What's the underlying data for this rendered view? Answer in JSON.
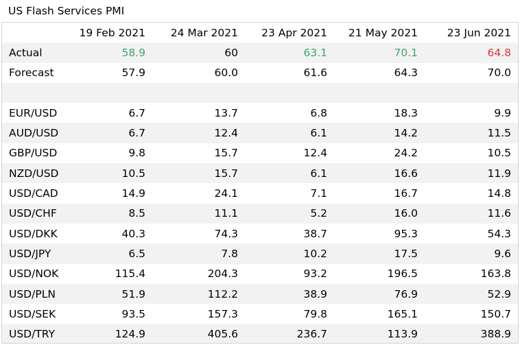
{
  "title": "US Flash Services PMI",
  "colors": {
    "up": "#3ea66b",
    "down": "#d9363e",
    "shade": "#f2f2f2"
  },
  "columns": [
    "",
    "19 Feb 2021",
    "24 Mar 2021",
    "23 Apr 2021",
    "21 May 2021",
    "23 Jun 2021"
  ],
  "actual": {
    "label": "Actual",
    "values": [
      "58.9",
      "60",
      "63.1",
      "70.1",
      "64.8"
    ],
    "tones": [
      "up",
      "none",
      "up",
      "up",
      "down"
    ]
  },
  "forecast": {
    "label": "Forecast",
    "values": [
      "57.9",
      "60.0",
      "61.6",
      "64.3",
      "70.0"
    ]
  },
  "pairs": [
    {
      "label": "EUR/USD",
      "values": [
        "6.7",
        "13.7",
        "6.8",
        "18.3",
        "9.9"
      ]
    },
    {
      "label": "AUD/USD",
      "values": [
        "6.7",
        "12.4",
        "6.1",
        "14.2",
        "11.5"
      ]
    },
    {
      "label": "GBP/USD",
      "values": [
        "9.8",
        "15.7",
        "12.4",
        "24.2",
        "10.5"
      ]
    },
    {
      "label": "NZD/USD",
      "values": [
        "10.5",
        "15.7",
        "6.1",
        "16.6",
        "11.9"
      ]
    },
    {
      "label": "USD/CAD",
      "values": [
        "14.9",
        "24.1",
        "7.1",
        "16.7",
        "14.8"
      ]
    },
    {
      "label": "USD/CHF",
      "values": [
        "8.5",
        "11.1",
        "5.2",
        "16.0",
        "11.6"
      ]
    },
    {
      "label": "USD/DKK",
      "values": [
        "40.3",
        "74.3",
        "38.7",
        "95.3",
        "54.3"
      ]
    },
    {
      "label": "USD/JPY",
      "values": [
        "6.5",
        "7.8",
        "10.2",
        "17.5",
        "9.6"
      ]
    },
    {
      "label": "USD/NOK",
      "values": [
        "115.4",
        "204.3",
        "93.2",
        "196.5",
        "163.8"
      ]
    },
    {
      "label": "USD/PLN",
      "values": [
        "51.9",
        "112.2",
        "38.9",
        "76.9",
        "52.9"
      ]
    },
    {
      "label": "USD/SEK",
      "values": [
        "93.5",
        "157.3",
        "79.8",
        "165.1",
        "150.7"
      ]
    },
    {
      "label": "USD/TRY",
      "values": [
        "124.9",
        "405.6",
        "236.7",
        "113.9",
        "388.9"
      ]
    }
  ]
}
